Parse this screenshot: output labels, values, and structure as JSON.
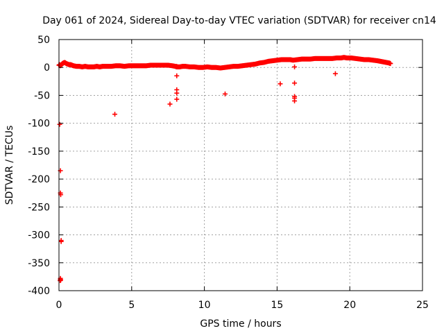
{
  "chart_data": {
    "type": "scatter",
    "title": "Day 061 of 2024, Sidereal Day-to-day VTEC variation (SDTVAR) for receiver cn14",
    "xlabel": "GPS time / hours",
    "ylabel": "SDTVAR / TECUs",
    "xlim": [
      0,
      25
    ],
    "ylim": [
      -400,
      50
    ],
    "xticks": [
      0,
      5,
      10,
      15,
      20,
      25
    ],
    "yticks": [
      50,
      0,
      -50,
      -100,
      -150,
      -200,
      -250,
      -300,
      -350,
      -400
    ],
    "grid": true,
    "marker": "+",
    "color": "#ff0000",
    "series": [
      {
        "name": "SDTVAR",
        "x": [
          0.0,
          0.05,
          0.1,
          0.2,
          0.3,
          0.4,
          0.5,
          0.6,
          0.7,
          0.8,
          0.9,
          1.0,
          1.2,
          1.4,
          1.6,
          1.8,
          2.0,
          2.2,
          2.4,
          2.6,
          2.8,
          3.0,
          3.3,
          3.6,
          3.9,
          4.2,
          4.5,
          4.8,
          5.1,
          5.4,
          5.7,
          6.0,
          6.3,
          6.6,
          6.9,
          7.2,
          7.5,
          7.8,
          8.0,
          8.1,
          8.3,
          8.5,
          8.7,
          9.0,
          9.3,
          9.6,
          9.9,
          10.2,
          10.5,
          10.8,
          11.1,
          11.4,
          11.7,
          12.0,
          12.3,
          12.6,
          12.9,
          13.2,
          13.5,
          13.8,
          14.1,
          14.4,
          14.7,
          15.0,
          15.3,
          15.6,
          15.9,
          16.1,
          16.4,
          16.7,
          17.0,
          17.3,
          17.6,
          17.9,
          18.2,
          18.5,
          18.8,
          19.1,
          19.4,
          19.6,
          19.8,
          20.1,
          20.4,
          20.7,
          21.0,
          21.3,
          21.6,
          21.9,
          22.1,
          22.3,
          22.5,
          22.7,
          22.8,
          0.05,
          0.1,
          0.1,
          0.12,
          0.15,
          0.15,
          0.1,
          0.08,
          0.1,
          0.12,
          8.1,
          8.1,
          8.1,
          8.1,
          8.1,
          8.2,
          16.2,
          16.2,
          16.2,
          16.2,
          16.2
        ],
        "y": [
          4,
          5,
          3,
          6,
          8,
          9,
          7,
          6,
          5,
          5,
          4,
          3,
          2,
          2,
          1,
          2,
          1,
          1,
          1,
          2,
          1,
          2,
          2,
          2,
          3,
          3,
          2,
          3,
          3,
          3,
          3,
          3,
          4,
          4,
          4,
          4,
          4,
          3,
          2,
          1,
          1,
          2,
          2,
          1,
          1,
          0,
          0,
          1,
          0,
          0,
          -1,
          0,
          1,
          2,
          2,
          3,
          4,
          5,
          6,
          8,
          9,
          11,
          12,
          13,
          14,
          14,
          14,
          13,
          14,
          15,
          15,
          15,
          16,
          16,
          16,
          16,
          16,
          17,
          17,
          18,
          17,
          17,
          16,
          15,
          14,
          14,
          13,
          12,
          11,
          10,
          9,
          8,
          7,
          -102,
          -185,
          -225,
          -228,
          -310,
          -312,
          -380,
          -382,
          -378,
          -381,
          -40,
          -46,
          -57,
          -15,
          2,
          1,
          -28,
          -52,
          -55,
          -60,
          1
        ]
      }
    ]
  }
}
